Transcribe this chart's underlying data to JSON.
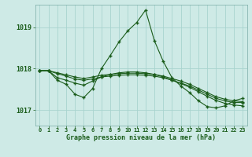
{
  "xlabel": "Graphe pression niveau de la mer (hPa)",
  "bg_color": "#ceeae6",
  "grid_color": "#a8d4cf",
  "line_color": "#1a5c1a",
  "ylim": [
    1016.62,
    1019.55
  ],
  "yticks": [
    1017,
    1018,
    1019
  ],
  "xlim": [
    -0.5,
    23.5
  ],
  "xticks": [
    0,
    1,
    2,
    3,
    4,
    5,
    6,
    7,
    8,
    9,
    10,
    11,
    12,
    13,
    14,
    15,
    16,
    17,
    18,
    19,
    20,
    21,
    22,
    23
  ],
  "series1": [
    1017.95,
    1017.95,
    1017.72,
    1017.62,
    1017.38,
    1017.3,
    1017.52,
    1018.0,
    1018.32,
    1018.65,
    1018.92,
    1019.12,
    1019.42,
    1018.68,
    1018.18,
    1017.78,
    1017.58,
    1017.42,
    1017.22,
    1017.08,
    1017.05,
    1017.1,
    1017.22,
    1017.28
  ],
  "series2": [
    1017.95,
    1017.95,
    1017.88,
    1017.82,
    1017.75,
    1017.72,
    1017.75,
    1017.8,
    1017.82,
    1017.84,
    1017.85,
    1017.85,
    1017.84,
    1017.82,
    1017.78,
    1017.72,
    1017.65,
    1017.58,
    1017.48,
    1017.38,
    1017.28,
    1017.22,
    1017.18,
    1017.18
  ],
  "series3": [
    1017.95,
    1017.95,
    1017.9,
    1017.85,
    1017.8,
    1017.76,
    1017.8,
    1017.84,
    1017.86,
    1017.88,
    1017.89,
    1017.89,
    1017.88,
    1017.86,
    1017.82,
    1017.76,
    1017.7,
    1017.62,
    1017.52,
    1017.42,
    1017.32,
    1017.26,
    1017.22,
    1017.2
  ],
  "series4": [
    1017.95,
    1017.95,
    1017.78,
    1017.72,
    1017.65,
    1017.6,
    1017.7,
    1017.8,
    1017.86,
    1017.9,
    1017.92,
    1017.92,
    1017.9,
    1017.86,
    1017.8,
    1017.72,
    1017.64,
    1017.55,
    1017.44,
    1017.33,
    1017.23,
    1017.16,
    1017.12,
    1017.1
  ]
}
